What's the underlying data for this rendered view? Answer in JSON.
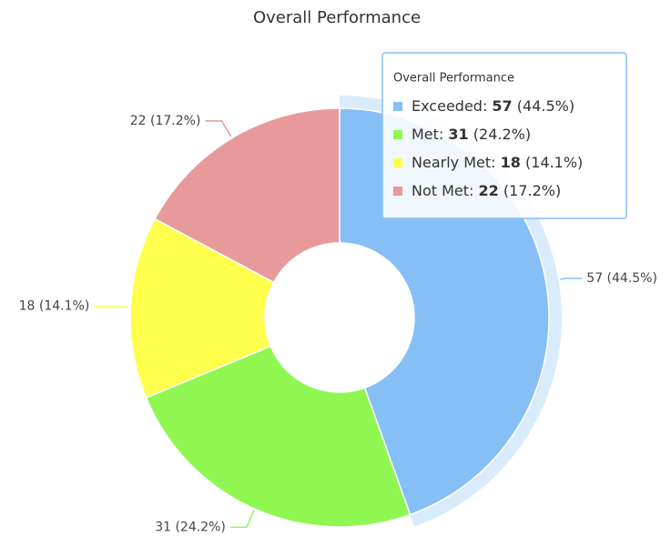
{
  "chart_data": {
    "type": "donut",
    "title": "Overall Performance",
    "categories": [
      "Exceeded",
      "Met",
      "Nearly Met",
      "Not Met"
    ],
    "values": [
      57,
      31,
      18,
      22
    ],
    "value_labels": [
      "57 (44.5%)",
      "31 (24.2%)",
      "18 (14.1%)",
      "22 (17.2%)"
    ],
    "percent_labels": [
      "(44.5%)",
      "(24.2%)",
      "(14.1%)",
      "(17.2%)"
    ],
    "colors": [
      "#86bff5",
      "#90f752",
      "#ffff4d",
      "#e89a9a"
    ],
    "highlighted": 0
  }
}
